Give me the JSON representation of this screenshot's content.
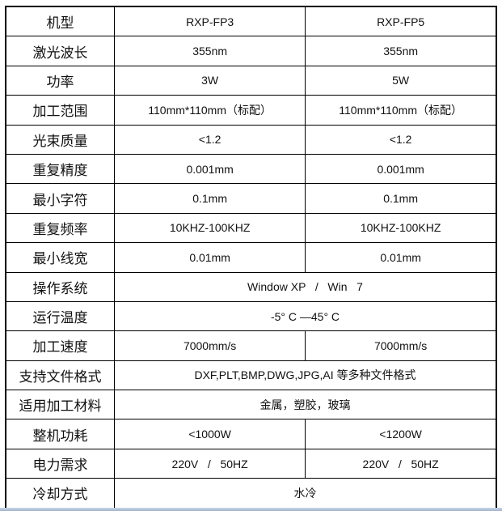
{
  "rows": [
    {
      "label": "机型",
      "values": [
        "RXP-FP3",
        "RXP-FP5"
      ]
    },
    {
      "label": "激光波长",
      "values": [
        "355nm",
        "355nm"
      ]
    },
    {
      "label": "功率",
      "values": [
        "3W",
        "5W"
      ]
    },
    {
      "label": "加工范围",
      "values": [
        "110mm*110mm（标配）",
        "110mm*110mm（标配）"
      ]
    },
    {
      "label": "光束质量",
      "values": [
        "<1.2",
        "<1.2"
      ]
    },
    {
      "label": "重复精度",
      "values": [
        "0.001mm",
        "0.001mm"
      ]
    },
    {
      "label": "最小字符",
      "values": [
        "0.1mm",
        "0.1mm"
      ]
    },
    {
      "label": "重复频率",
      "values": [
        "10KHZ-100KHZ",
        "10KHZ-100KHZ"
      ]
    },
    {
      "label": "最小线宽",
      "values": [
        "0.01mm",
        "0.01mm"
      ]
    },
    {
      "label": "操作系统",
      "values": [
        "Window XP   /   Win   7"
      ]
    },
    {
      "label": "运行温度",
      "values": [
        "-5° C —45° C"
      ]
    },
    {
      "label": "加工速度",
      "values": [
        "7000mm/s",
        "7000mm/s"
      ]
    },
    {
      "label": "支持文件格式",
      "values": [
        "DXF,PLT,BMP,DWG,JPG,AI 等多种文件格式"
      ]
    },
    {
      "label": "适用加工材料",
      "values": [
        "金属，塑胶，玻璃"
      ]
    },
    {
      "label": "整机功耗",
      "values": [
        "<1000W",
        "<1200W"
      ]
    },
    {
      "label": "电力需求",
      "values": [
        "220V   /   50HZ",
        "220V   /   50HZ"
      ]
    },
    {
      "label": "冷却方式",
      "values": [
        "水冷"
      ]
    }
  ]
}
